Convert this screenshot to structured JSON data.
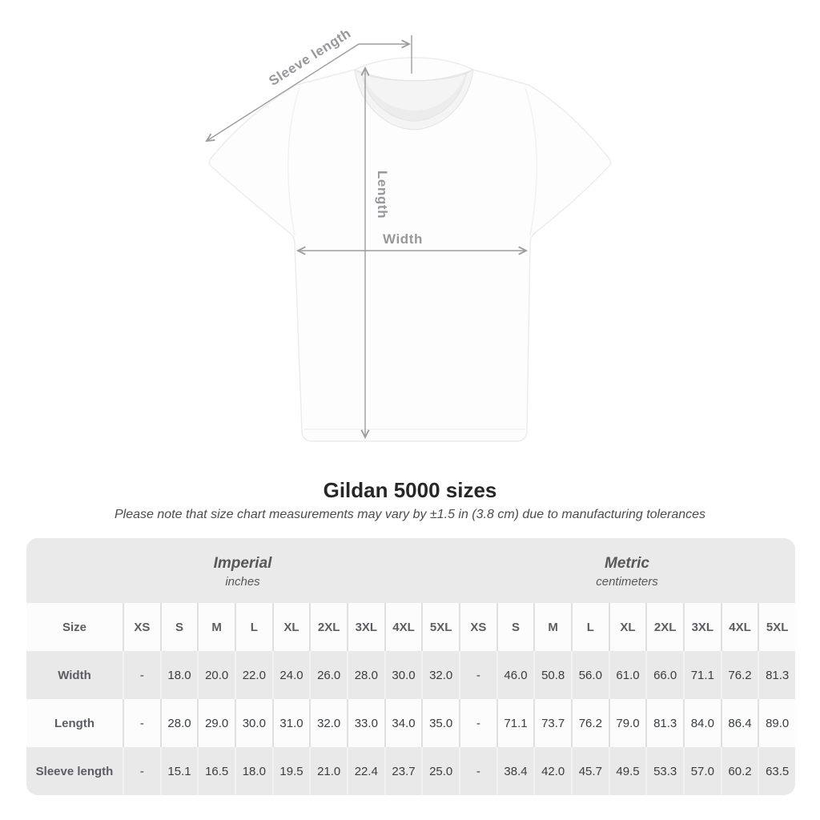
{
  "title": "Gildan 5000 sizes",
  "subtitle": "Please note that size chart measurements may vary by ±1.5 in (3.8 cm) due to manufacturing tolerances",
  "diagram": {
    "labels": {
      "sleeve_length": "Sleeve length",
      "length": "Length",
      "width": "Width"
    },
    "line_color": "#9a9da1",
    "label_color": "#96989b"
  },
  "table": {
    "groups": [
      {
        "label": "Imperial",
        "sublabel": "inches"
      },
      {
        "label": "Metric",
        "sublabel": "centimeters"
      }
    ],
    "size_header": "Size",
    "columns": [
      "XS",
      "S",
      "M",
      "L",
      "XL",
      "2XL",
      "3XL",
      "4XL",
      "5XL",
      "XS",
      "S",
      "M",
      "L",
      "XL",
      "2XL",
      "3XL",
      "4XL",
      "5XL"
    ],
    "rows": [
      {
        "label": "Width",
        "values": [
          "-",
          "18.0",
          "20.0",
          "22.0",
          "24.0",
          "26.0",
          "28.0",
          "30.0",
          "32.0",
          "-",
          "46.0",
          "50.8",
          "56.0",
          "61.0",
          "66.0",
          "71.1",
          "76.2",
          "81.3"
        ]
      },
      {
        "label": "Length",
        "values": [
          "-",
          "28.0",
          "29.0",
          "30.0",
          "31.0",
          "32.0",
          "33.0",
          "34.0",
          "35.0",
          "-",
          "71.1",
          "73.7",
          "76.2",
          "79.0",
          "81.3",
          "84.0",
          "86.4",
          "89.0"
        ]
      },
      {
        "label": "Sleeve length",
        "values": [
          "-",
          "15.1",
          "16.5",
          "18.0",
          "19.5",
          "21.0",
          "22.4",
          "23.7",
          "25.0",
          "-",
          "38.4",
          "42.0",
          "45.7",
          "49.5",
          "53.3",
          "57.0",
          "60.2",
          "63.5"
        ]
      }
    ]
  },
  "colors": {
    "band_gray": "#eaeaea",
    "row_gray": "#e9e9e9",
    "row_white": "#fcfcfc",
    "header_text": "#5a5e63",
    "value_text": "#393d40"
  }
}
